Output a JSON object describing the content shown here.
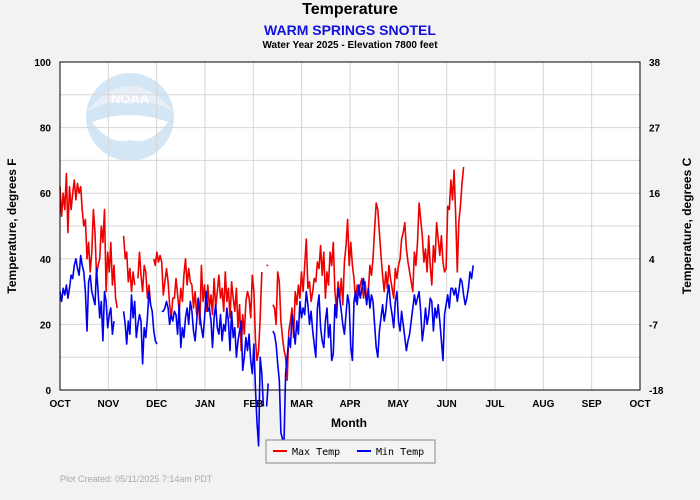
{
  "header": {
    "title": "Temperature",
    "station": "WARM SPRINGS SNOTEL",
    "subtitle": "Water Year 2025 -  Elevation 7800 feet"
  },
  "footer": {
    "created": "Plot Created: 05/11/2025 7:14am PDT"
  },
  "colors": {
    "max": "#ee0000",
    "min": "#0000ee",
    "grid": "#d6d6d6"
  },
  "logo": {
    "text": "NOAA"
  },
  "chart_data": {
    "type": "line",
    "xlabel": "Month",
    "ylabel": "Temperature, degrees F",
    "ylabel_right": "Temperature, degrees C",
    "ylim": [
      0,
      100
    ],
    "yticks": [
      0,
      20,
      40,
      60,
      80,
      100
    ],
    "right_ticks": [
      {
        "f": 100,
        "label": "38"
      },
      {
        "f": 80,
        "label": "27"
      },
      {
        "f": 60,
        "label": "16"
      },
      {
        "f": 40,
        "label": "4"
      },
      {
        "f": 20,
        "label": "-7"
      },
      {
        "f": 0,
        "label": "-18"
      }
    ],
    "months": [
      "OCT",
      "NOV",
      "DEC",
      "JAN",
      "FEB",
      "MAR",
      "APR",
      "MAY",
      "JUN",
      "JUL",
      "AUG",
      "SEP",
      "OCT"
    ],
    "legend_position": "bottom-center",
    "series": [
      {
        "name": "Max Temp",
        "color": "#ee0000",
        "values": [
          62,
          53,
          60,
          55,
          66,
          48,
          62,
          55,
          60,
          64,
          58,
          63,
          60,
          62,
          55,
          50,
          52,
          40,
          45,
          36,
          42,
          55,
          48,
          35,
          38,
          40,
          50,
          45,
          55,
          30,
          42,
          36,
          45,
          32,
          38,
          28,
          25,
          null,
          null,
          null,
          47,
          40,
          42,
          33,
          37,
          30,
          36,
          32,
          null,
          34,
          42,
          35,
          30,
          38,
          36,
          28,
          32,
          26,
          null,
          40,
          38,
          42,
          39,
          41,
          39,
          29,
          33,
          37,
          33,
          26,
          22,
          28,
          28,
          34,
          29,
          24,
          31,
          27,
          35,
          40,
          32,
          37,
          33,
          32,
          25,
          30,
          23,
          28,
          20,
          38,
          27,
          32,
          24,
          32,
          25,
          29,
          23,
          34,
          25,
          30,
          35,
          28,
          31,
          24,
          36,
          27,
          31,
          22,
          33,
          28,
          24,
          31,
          19,
          26,
          12,
          23,
          17,
          27,
          30,
          28,
          22,
          35,
          30,
          15,
          9,
          12,
          22,
          36,
          null,
          null,
          38,
          38,
          null,
          null,
          26,
          25,
          20,
          36,
          33,
          21,
          16,
          12,
          10,
          3,
          18,
          21,
          25,
          16,
          30,
          26,
          32,
          28,
          36,
          30,
          38,
          46,
          31,
          33,
          27,
          30,
          34,
          33,
          39,
          37,
          44,
          35,
          42,
          28,
          36,
          32,
          42,
          38,
          45,
          30,
          25,
          33,
          28,
          34,
          26,
          39,
          44,
          52,
          38,
          45,
          38,
          34,
          27,
          32,
          29,
          32,
          34,
          28,
          33,
          27,
          30,
          38,
          35,
          40,
          49,
          57,
          55,
          48,
          41,
          35,
          30,
          36,
          31,
          38,
          34,
          31,
          28,
          37,
          34,
          38,
          40,
          46,
          48,
          51,
          43,
          39,
          36,
          33,
          30,
          42,
          38,
          45,
          57,
          52,
          47,
          39,
          43,
          36,
          47,
          38,
          32,
          44,
          39,
          51,
          46,
          41,
          47,
          39,
          36,
          37,
          56,
          55,
          64,
          58,
          67,
          53,
          36,
          51,
          56,
          63,
          68
        ]
      },
      {
        "name": "Min Temp",
        "color": "#0000ee",
        "values": [
          30,
          27,
          31,
          29,
          32,
          28,
          31,
          35,
          34,
          38,
          40,
          37,
          35,
          41,
          38,
          36,
          30,
          18,
          33,
          35,
          30,
          28,
          26,
          37,
          30,
          22,
          27,
          15,
          30,
          27,
          19,
          23,
          25,
          17,
          21,
          null,
          null,
          null,
          null,
          null,
          24,
          20,
          14,
          21,
          17,
          29,
          22,
          27,
          16,
          20,
          23,
          21,
          8,
          19,
          16,
          22,
          30,
          26,
          24,
          18,
          15,
          14,
          null,
          null,
          24,
          24,
          25,
          27,
          25,
          20,
          23,
          21,
          24,
          23,
          17,
          26,
          13,
          19,
          16,
          22,
          25,
          20,
          27,
          24,
          18,
          15,
          21,
          28,
          23,
          19,
          16,
          22,
          30,
          24,
          25,
          21,
          13,
          22,
          26,
          19,
          17,
          23,
          15,
          20,
          18,
          25,
          21,
          12,
          24,
          16,
          19,
          10,
          15,
          18,
          21,
          6,
          10,
          16,
          12,
          17,
          9,
          5,
          14,
          0,
          -10,
          -17,
          10,
          5,
          -5,
          null,
          -5,
          2,
          null,
          null,
          18,
          17,
          14,
          8,
          3,
          -13,
          -15,
          -15,
          5,
          10,
          16,
          13,
          23,
          19,
          14,
          21,
          17,
          27,
          22,
          25,
          23,
          30,
          26,
          20,
          24,
          18,
          14,
          10,
          25,
          29,
          19,
          15,
          13,
          21,
          25,
          16,
          20,
          9,
          11,
          26,
          22,
          31,
          28,
          24,
          20,
          17,
          23,
          29,
          26,
          13,
          9,
          27,
          30,
          26,
          32,
          28,
          31,
          34,
          30,
          26,
          31,
          25,
          29,
          27,
          20,
          13,
          10,
          18,
          22,
          26,
          21,
          24,
          29,
          32,
          26,
          23,
          19,
          27,
          30,
          21,
          18,
          24,
          20,
          16,
          12,
          15,
          17,
          21,
          25,
          29,
          26,
          28,
          30,
          24,
          15,
          19,
          25,
          20,
          23,
          28,
          27,
          18,
          25,
          22,
          26,
          21,
          15,
          9,
          23,
          26,
          29,
          25,
          31,
          31,
          29,
          31,
          27,
          30,
          34,
          33,
          29,
          26,
          28,
          31,
          36,
          34,
          38
        ]
      }
    ]
  }
}
